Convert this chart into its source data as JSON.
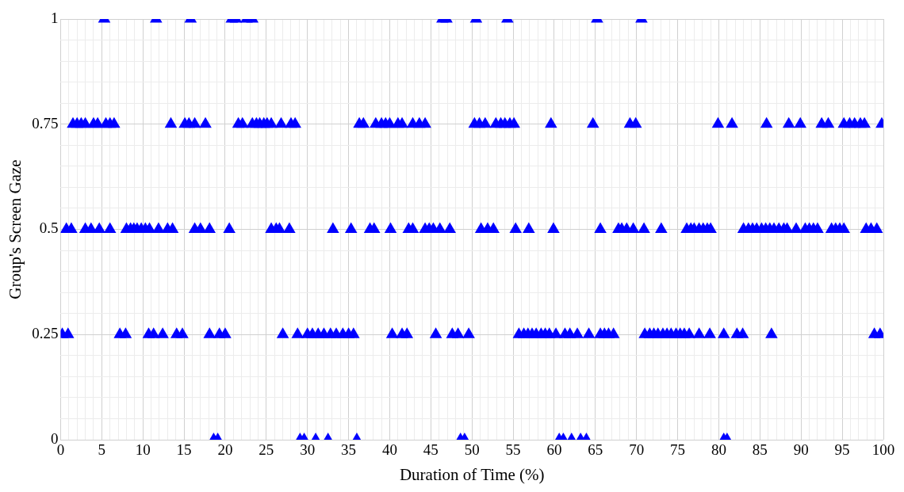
{
  "chart_data": {
    "type": "scatter",
    "xlabel": "Duration of Time (%)",
    "ylabel": "Group's Screen Gaze",
    "marker": "triangle",
    "grid": true,
    "legend": false,
    "xlim": [
      0,
      100
    ],
    "ylim": [
      0,
      1
    ],
    "xticks": [
      0,
      {
        "value": 1,
        "label": null
      },
      {
        "value": 2,
        "label": null
      },
      {
        "value": 3,
        "label": null
      },
      {
        "value": 4,
        "label": null
      },
      5,
      {
        "value": 6,
        "label": null
      },
      {
        "value": 7,
        "label": null
      },
      {
        "value": 8,
        "label": null
      },
      {
        "value": 9,
        "label": null
      },
      10,
      {
        "value": 11,
        "label": null
      },
      {
        "value": 12,
        "label": null
      },
      {
        "value": 13,
        "label": null
      },
      {
        "value": 14,
        "label": null
      },
      15,
      {
        "value": 16,
        "label": null
      },
      {
        "value": 17,
        "label": null
      },
      {
        "value": 18,
        "label": null
      },
      {
        "value": 19,
        "label": null
      },
      20,
      {
        "value": 21,
        "label": null
      },
      {
        "value": 22,
        "label": null
      },
      {
        "value": 23,
        "label": null
      },
      {
        "value": 24,
        "label": null
      },
      25,
      {
        "value": 26,
        "label": null
      },
      {
        "value": 27,
        "label": null
      },
      {
        "value": 28,
        "label": null
      },
      {
        "value": 29,
        "label": null
      },
      30,
      {
        "value": 31,
        "label": null
      },
      {
        "value": 32,
        "label": null
      },
      {
        "value": 33,
        "label": null
      },
      {
        "value": 34,
        "label": null
      },
      35,
      {
        "value": 36,
        "label": null
      },
      {
        "value": 37,
        "label": null
      },
      {
        "value": 38,
        "label": null
      },
      {
        "value": 39,
        "label": null
      },
      40,
      {
        "value": 41,
        "label": null
      },
      {
        "value": 42,
        "label": null
      },
      {
        "value": 43,
        "label": null
      },
      {
        "value": 44,
        "label": null
      },
      45,
      {
        "value": 46,
        "label": null
      },
      {
        "value": 47,
        "label": null
      },
      {
        "value": 48,
        "label": null
      },
      {
        "value": 49,
        "label": null
      },
      50,
      {
        "value": 51,
        "label": null
      },
      {
        "value": 52,
        "label": null
      },
      {
        "value": 53,
        "label": null
      },
      {
        "value": 54,
        "label": null
      },
      55,
      {
        "value": 56,
        "label": null
      },
      {
        "value": 57,
        "label": null
      },
      {
        "value": 58,
        "label": null
      },
      {
        "value": 59,
        "label": null
      },
      60,
      {
        "value": 61,
        "label": null
      },
      {
        "value": 62,
        "label": null
      },
      {
        "value": 63,
        "label": null
      },
      {
        "value": 64,
        "label": null
      },
      65,
      {
        "value": 66,
        "label": null
      },
      {
        "value": 67,
        "label": null
      },
      {
        "value": 68,
        "label": null
      },
      {
        "value": 69,
        "label": null
      },
      70,
      {
        "value": 71,
        "label": null
      },
      {
        "value": 72,
        "label": null
      },
      {
        "value": 73,
        "label": null
      },
      {
        "value": 74,
        "label": null
      },
      75,
      {
        "value": 76,
        "label": null
      },
      {
        "value": 77,
        "label": null
      },
      {
        "value": 78,
        "label": null
      },
      {
        "value": 79,
        "label": null
      },
      80,
      {
        "value": 81,
        "label": null
      },
      {
        "value": 82,
        "label": null
      },
      {
        "value": 83,
        "label": null
      },
      {
        "value": 84,
        "label": null
      },
      85,
      {
        "value": 86,
        "label": null
      },
      {
        "value": 87,
        "label": null
      },
      {
        "value": 88,
        "label": null
      },
      {
        "value": 89,
        "label": null
      },
      90,
      {
        "value": 91,
        "label": null
      },
      {
        "value": 92,
        "label": null
      },
      {
        "value": 93,
        "label": null
      },
      {
        "value": 94,
        "label": null
      },
      95,
      {
        "value": 96,
        "label": null
      },
      {
        "value": 97,
        "label": null
      },
      {
        "value": 98,
        "label": null
      },
      {
        "value": 99,
        "label": null
      },
      100
    ],
    "yticks": [
      0,
      {
        "value": 0.05,
        "label": null
      },
      {
        "value": 0.1,
        "label": null
      },
      {
        "value": 0.15,
        "label": null
      },
      {
        "value": 0.2,
        "label": null
      },
      0.25,
      {
        "value": 0.3,
        "label": null
      },
      {
        "value": 0.35,
        "label": null
      },
      {
        "value": 0.4,
        "label": null
      },
      {
        "value": 0.45,
        "label": null
      },
      0.5,
      {
        "value": 0.55,
        "label": null
      },
      {
        "value": 0.6,
        "label": null
      },
      {
        "value": 0.65,
        "label": null
      },
      {
        "value": 0.7,
        "label": null
      },
      0.75,
      {
        "value": 0.8,
        "label": null
      },
      {
        "value": 0.85,
        "label": null
      },
      {
        "value": 0.9,
        "label": null
      },
      {
        "value": 0.95,
        "label": null
      },
      1
    ],
    "series": [
      {
        "color": "#0000ff",
        "x": [
          5.3,
          11.6,
          15.8,
          20.8,
          21.3,
          22.6,
          23.3,
          46.4,
          46.9,
          50.5,
          54.3,
          65.2,
          70.6,
          1.5,
          2,
          2.5,
          3,
          4,
          4.5,
          5.5,
          6,
          6.5,
          13.4,
          15.1,
          15.6,
          16.3,
          17.6,
          21.6,
          22.1,
          23.3,
          23.8,
          24.2,
          24.7,
          25.1,
          25.6,
          26.8,
          28,
          28.5,
          36.3,
          36.8,
          38.3,
          39,
          39.5,
          40,
          41,
          41.5,
          42.8,
          43.6,
          44.3,
          50.3,
          50.9,
          51.6,
          52.9,
          53.5,
          54,
          54.6,
          55.1,
          59.6,
          64.7,
          69.2,
          69.9,
          79.9,
          81.6,
          85.8,
          88.5,
          89.9,
          92.5,
          93.3,
          95.2,
          95.9,
          96.5,
          97.2,
          97.7,
          99.8,
          0.7,
          1.3,
          3,
          3.7,
          4.7,
          6,
          8,
          8.5,
          8.9,
          9.3,
          9.8,
          10.3,
          10.8,
          11.9,
          13,
          13.6,
          16.3,
          17,
          18.1,
          20.5,
          25.6,
          26.2,
          26.6,
          27.8,
          33.1,
          35.3,
          37.6,
          38.1,
          40.1,
          42.3,
          42.8,
          44.3,
          44.8,
          45.3,
          46.1,
          47.3,
          51.1,
          51.9,
          52.6,
          55.3,
          56.9,
          59.9,
          65.6,
          67.8,
          68.2,
          68.8,
          69.6,
          70.9,
          73,
          76.1,
          76.6,
          77,
          77.6,
          78.1,
          78.6,
          79,
          83,
          83.6,
          84.1,
          84.6,
          85.2,
          85.7,
          86.2,
          86.7,
          87.3,
          87.9,
          88.3,
          89.4,
          90.5,
          91,
          91.5,
          92,
          93.7,
          94.2,
          94.7,
          95.2,
          97.9,
          98.5,
          99.2,
          0.2,
          0.9,
          7.2,
          7.9,
          10.7,
          11.3,
          12.4,
          14.1,
          14.8,
          18.1,
          19.3,
          20,
          27,
          28.8,
          30,
          30.6,
          31.3,
          32,
          32.8,
          33.5,
          34.3,
          35,
          35.6,
          40.3,
          41.5,
          42.1,
          45.6,
          47.6,
          48.3,
          49.6,
          55.7,
          56.3,
          56.8,
          57.3,
          57.8,
          58.4,
          58.9,
          59.4,
          60.2,
          61.3,
          61.9,
          62.8,
          64.2,
          65.6,
          66.1,
          66.6,
          67.2,
          71,
          71.6,
          72.1,
          72.6,
          73.2,
          73.7,
          74.2,
          74.8,
          75.3,
          75.8,
          76.4,
          77.6,
          78.9,
          80.6,
          82.2,
          82.9,
          86.4,
          98.9,
          99.6,
          18.6,
          19.1,
          29.1,
          29.6,
          31,
          32.5,
          36,
          48.6,
          49.1,
          60.6,
          61.1,
          62.1,
          63.2,
          63.9,
          80.6,
          81
        ],
        "values": [
          1,
          1,
          1,
          1,
          1,
          1,
          1,
          1,
          1,
          1,
          1,
          1,
          1,
          0.75,
          0.75,
          0.75,
          0.75,
          0.75,
          0.75,
          0.75,
          0.75,
          0.75,
          0.75,
          0.75,
          0.75,
          0.75,
          0.75,
          0.75,
          0.75,
          0.75,
          0.75,
          0.75,
          0.75,
          0.75,
          0.75,
          0.75,
          0.75,
          0.75,
          0.75,
          0.75,
          0.75,
          0.75,
          0.75,
          0.75,
          0.75,
          0.75,
          0.75,
          0.75,
          0.75,
          0.75,
          0.75,
          0.75,
          0.75,
          0.75,
          0.75,
          0.75,
          0.75,
          0.75,
          0.75,
          0.75,
          0.75,
          0.75,
          0.75,
          0.75,
          0.75,
          0.75,
          0.75,
          0.75,
          0.75,
          0.75,
          0.75,
          0.75,
          0.75,
          0.75,
          0.5,
          0.5,
          0.5,
          0.5,
          0.5,
          0.5,
          0.5,
          0.5,
          0.5,
          0.5,
          0.5,
          0.5,
          0.5,
          0.5,
          0.5,
          0.5,
          0.5,
          0.5,
          0.5,
          0.5,
          0.5,
          0.5,
          0.5,
          0.5,
          0.5,
          0.5,
          0.5,
          0.5,
          0.5,
          0.5,
          0.5,
          0.5,
          0.5,
          0.5,
          0.5,
          0.5,
          0.5,
          0.5,
          0.5,
          0.5,
          0.5,
          0.5,
          0.5,
          0.5,
          0.5,
          0.5,
          0.5,
          0.5,
          0.5,
          0.5,
          0.5,
          0.5,
          0.5,
          0.5,
          0.5,
          0.5,
          0.5,
          0.5,
          0.5,
          0.5,
          0.5,
          0.5,
          0.5,
          0.5,
          0.5,
          0.5,
          0.5,
          0.5,
          0.5,
          0.5,
          0.5,
          0.5,
          0.5,
          0.5,
          0.5,
          0.5,
          0.5,
          0.5,
          0.5,
          0.25,
          0.25,
          0.25,
          0.25,
          0.25,
          0.25,
          0.25,
          0.25,
          0.25,
          0.25,
          0.25,
          0.25,
          0.25,
          0.25,
          0.25,
          0.25,
          0.25,
          0.25,
          0.25,
          0.25,
          0.25,
          0.25,
          0.25,
          0.25,
          0.25,
          0.25,
          0.25,
          0.25,
          0.25,
          0.25,
          0.25,
          0.25,
          0.25,
          0.25,
          0.25,
          0.25,
          0.25,
          0.25,
          0.25,
          0.25,
          0.25,
          0.25,
          0.25,
          0.25,
          0.25,
          0.25,
          0.25,
          0.25,
          0.25,
          0.25,
          0.25,
          0.25,
          0.25,
          0.25,
          0.25,
          0.25,
          0.25,
          0.25,
          0.25,
          0.25,
          0.25,
          0.25,
          0.25,
          0.25,
          0.25,
          0.25,
          0,
          0,
          0,
          0,
          0,
          0,
          0,
          0,
          0,
          0,
          0,
          0,
          0,
          0,
          0,
          0
        ]
      }
    ]
  }
}
